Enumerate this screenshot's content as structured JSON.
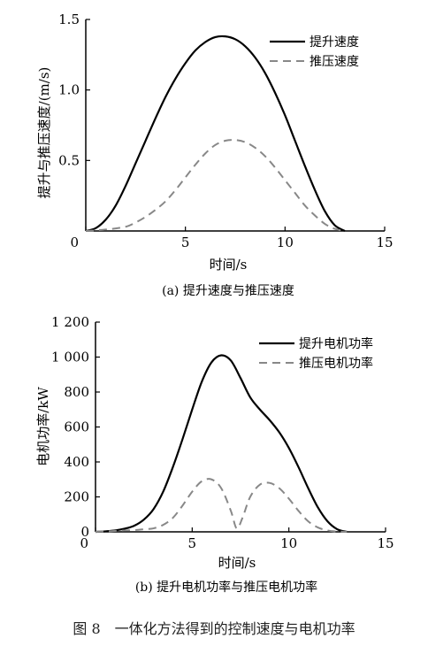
{
  "chart_data": [
    {
      "type": "line",
      "caption": "(a) 提升速度与推压速度",
      "xlabel": "时间/s",
      "ylabel": "提升与推压速度/(m/s)",
      "xlim": [
        0,
        15
      ],
      "ylim": [
        0,
        1.5
      ],
      "xticks": [
        0,
        5,
        10,
        15
      ],
      "yticks": [
        0.5,
        1.0,
        1.5
      ],
      "xtick_labels": [
        "0",
        "5",
        "10",
        "15"
      ],
      "ytick_labels": [
        "0.5",
        "1.0",
        "1.5"
      ],
      "legend_position": "top-right",
      "series": [
        {
          "name": "提升速度",
          "style": "solid",
          "color": "#000000",
          "x": [
            0,
            0.5,
            1,
            1.5,
            2,
            2.5,
            3,
            3.5,
            4,
            4.5,
            5,
            5.5,
            6,
            6.5,
            7,
            7.5,
            8,
            8.5,
            9,
            9.5,
            10,
            10.5,
            11,
            11.5,
            12,
            12.5,
            13
          ],
          "y": [
            0,
            0.02,
            0.08,
            0.18,
            0.32,
            0.48,
            0.64,
            0.8,
            0.95,
            1.08,
            1.19,
            1.28,
            1.34,
            1.375,
            1.38,
            1.36,
            1.31,
            1.23,
            1.12,
            0.98,
            0.82,
            0.64,
            0.46,
            0.29,
            0.14,
            0.04,
            0
          ]
        },
        {
          "name": "推压速度",
          "style": "dashed",
          "color": "#888888",
          "x": [
            0,
            1,
            2,
            2.5,
            3,
            3.5,
            4,
            4.5,
            5,
            5.5,
            6,
            6.5,
            7,
            7.5,
            8,
            8.5,
            9,
            9.5,
            10,
            10.5,
            11,
            11.5,
            12,
            12.5,
            13
          ],
          "y": [
            0,
            0.01,
            0.03,
            0.06,
            0.1,
            0.15,
            0.21,
            0.29,
            0.38,
            0.47,
            0.55,
            0.61,
            0.64,
            0.645,
            0.63,
            0.59,
            0.53,
            0.45,
            0.36,
            0.27,
            0.18,
            0.11,
            0.05,
            0.015,
            0
          ]
        }
      ]
    },
    {
      "type": "line",
      "caption": "(b) 提升电机功率与推压电机功率",
      "xlabel": "时间/s",
      "ylabel": "电机功率/kW",
      "xlim": [
        0,
        15
      ],
      "ylim": [
        0,
        1200
      ],
      "xticks": [
        0,
        5,
        10,
        15
      ],
      "yticks": [
        0,
        200,
        400,
        600,
        800,
        1000,
        1200
      ],
      "xtick_labels": [
        "0",
        "5",
        "10",
        "15"
      ],
      "ytick_labels": [
        "0",
        "200",
        "400",
        "600",
        "800",
        "1 000",
        "1 200"
      ],
      "legend_position": "top-right",
      "series": [
        {
          "name": "提升电机功率",
          "style": "solid",
          "color": "#000000",
          "x": [
            0,
            0.5,
            1,
            1.5,
            2,
            2.5,
            3,
            3.5,
            4,
            4.5,
            5,
            5.5,
            6,
            6.5,
            7,
            7.5,
            8,
            8.5,
            9,
            9.5,
            10,
            10.5,
            11,
            11.5,
            12,
            12.5,
            13
          ],
          "y": [
            0,
            3,
            8,
            18,
            35,
            70,
            130,
            230,
            370,
            530,
            700,
            860,
            970,
            1010,
            980,
            880,
            770,
            700,
            640,
            570,
            480,
            370,
            250,
            140,
            60,
            15,
            0
          ]
        },
        {
          "name": "推压电机功率",
          "style": "dashed",
          "color": "#888888",
          "x": [
            0,
            1,
            2,
            2.5,
            3,
            3.5,
            4,
            4.5,
            5,
            5.5,
            6,
            6.5,
            7,
            7.3,
            7.6,
            8,
            8.5,
            9,
            9.5,
            10,
            10.5,
            11,
            11.5,
            12,
            12.5,
            13
          ],
          "y": [
            0,
            5,
            10,
            15,
            20,
            40,
            80,
            150,
            230,
            290,
            300,
            250,
            120,
            20,
            80,
            200,
            270,
            280,
            250,
            190,
            120,
            60,
            25,
            8,
            2,
            0
          ]
        }
      ]
    }
  ],
  "figure_caption": "图 8　一体化方法得到的控制速度与电机功率"
}
